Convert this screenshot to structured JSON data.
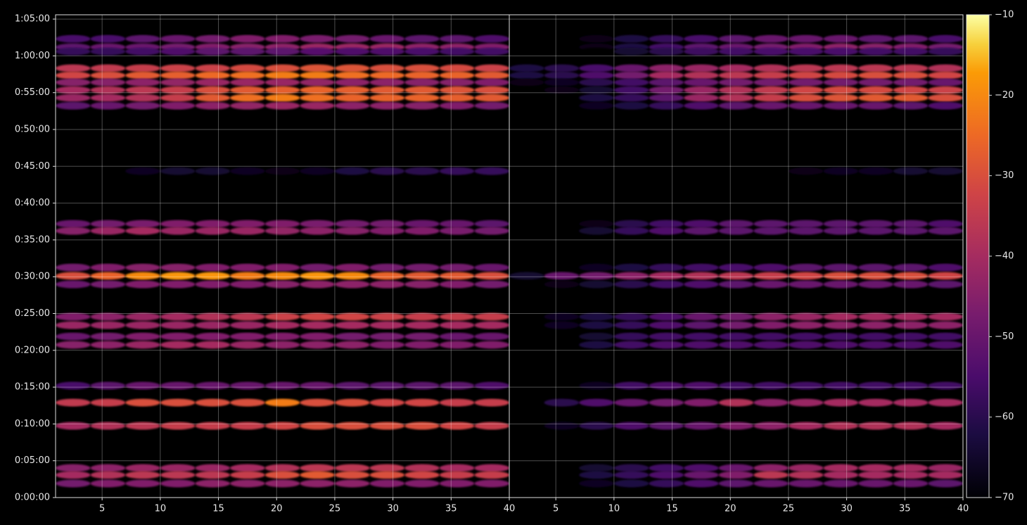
{
  "chart_data": {
    "type": "heatmap",
    "colormap": "inferno",
    "grid": true,
    "y": [
      3739,
      3671,
      3636,
      3499,
      3441,
      3384,
      3321,
      3258,
      3194,
      2661,
      2231,
      2174,
      1875,
      1807,
      1738,
      1474,
      1405,
      1313,
      1245,
      912,
      774,
      585,
      241,
      184,
      115
    ],
    "ylim": [
      0,
      3935
    ],
    "yticks": [
      {
        "value": 0,
        "label": "0:00:00"
      },
      {
        "value": 300,
        "label": "0:05:00"
      },
      {
        "value": 600,
        "label": "0:10:00"
      },
      {
        "value": 900,
        "label": "0:15:00"
      },
      {
        "value": 1200,
        "label": "0:20:00"
      },
      {
        "value": 1500,
        "label": "0:25:00"
      },
      {
        "value": 1800,
        "label": "0:30:00"
      },
      {
        "value": 2100,
        "label": "0:35:00"
      },
      {
        "value": 2400,
        "label": "0:40:00"
      },
      {
        "value": 2700,
        "label": "0:45:00"
      },
      {
        "value": 3000,
        "label": "0:50:00"
      },
      {
        "value": 3300,
        "label": "0:55:00"
      },
      {
        "value": 3600,
        "label": "1:00:00"
      },
      {
        "value": 3900,
        "label": "1:05:00"
      }
    ],
    "clim": [
      -70,
      -10
    ],
    "cticks": [
      {
        "value": -10,
        "label": "−10"
      },
      {
        "value": -20,
        "label": "−20"
      },
      {
        "value": -30,
        "label": "−30"
      },
      {
        "value": -40,
        "label": "−40"
      },
      {
        "value": -50,
        "label": "−50"
      },
      {
        "value": -60,
        "label": "−60"
      },
      {
        "value": -70,
        "label": "−70"
      }
    ],
    "panels": [
      {
        "x": [
          2.5,
          5.5,
          8.5,
          11.5,
          14.5,
          17.5,
          20.5,
          23.5,
          26.5,
          29.5,
          32.5,
          35.5,
          38.5
        ],
        "xlim": [
          1,
          40
        ],
        "xticks": [
          5,
          10,
          15,
          20,
          25,
          30,
          35,
          40
        ],
        "z": [
          [
            -55,
            -55,
            -52,
            -50,
            -48,
            -46,
            -46,
            -47,
            -48,
            -50,
            -52,
            -52,
            -54
          ],
          [
            -52,
            -50,
            -50,
            -48,
            -46,
            -45,
            -44,
            -42,
            -42,
            -42,
            -44,
            -44,
            -46
          ],
          [
            -58,
            -58,
            -56,
            -54,
            -52,
            -52,
            -52,
            -53,
            -54,
            -54,
            -55,
            -56,
            -56
          ],
          [
            -36,
            -35,
            -34,
            -33,
            -33,
            -31,
            -30,
            -29,
            -29,
            -30,
            -30,
            -31,
            -33
          ],
          [
            -32,
            -30,
            -28,
            -27,
            -25,
            -24,
            -22,
            -22,
            -24,
            -25,
            -26,
            -26,
            -28
          ],
          [
            -45,
            -45,
            -44,
            -43,
            -42,
            -42,
            -42,
            -43,
            -44,
            -44,
            -45,
            -45,
            -46
          ],
          [
            -40,
            -38,
            -36,
            -34,
            -30,
            -28,
            -27,
            -26,
            -27,
            -28,
            -28,
            -29,
            -30
          ],
          [
            -42,
            -40,
            -38,
            -34,
            -28,
            -24,
            -22,
            -24,
            -26,
            -26,
            -26,
            -27,
            -28
          ],
          [
            -52,
            -50,
            -48,
            -46,
            -44,
            -43,
            -42,
            -42,
            -44,
            -44,
            -45,
            -46,
            -48
          ],
          [
            -70,
            -70,
            -66,
            -64,
            -64,
            -66,
            -68,
            -66,
            -62,
            -60,
            -60,
            -58,
            -58
          ],
          [
            -50,
            -48,
            -47,
            -46,
            -46,
            -46,
            -46,
            -47,
            -48,
            -48,
            -50,
            -50,
            -52
          ],
          [
            -45,
            -42,
            -40,
            -42,
            -42,
            -42,
            -43,
            -44,
            -45,
            -46,
            -46,
            -47,
            -48
          ],
          [
            -48,
            -46,
            -45,
            -45,
            -46,
            -46,
            -46,
            -48,
            -46,
            -48,
            -48,
            -48,
            -50
          ],
          [
            -30,
            -26,
            -20,
            -18,
            -18,
            -22,
            -20,
            -18,
            -20,
            -26,
            -28,
            -28,
            -30
          ],
          [
            -50,
            -48,
            -46,
            -46,
            -46,
            -46,
            -45,
            -44,
            -44,
            -44,
            -45,
            -46,
            -48
          ],
          [
            -46,
            -44,
            -42,
            -40,
            -38,
            -36,
            -33,
            -32,
            -32,
            -33,
            -34,
            -34,
            -34
          ],
          [
            -42,
            -42,
            -42,
            -42,
            -42,
            -42,
            -40,
            -40,
            -40,
            -40,
            -40,
            -40,
            -40
          ],
          [
            -50,
            -48,
            -46,
            -46,
            -46,
            -46,
            -46,
            -46,
            -48,
            -48,
            -48,
            -50,
            -50
          ],
          [
            -45,
            -44,
            -42,
            -40,
            -40,
            -42,
            -44,
            -44,
            -44,
            -46,
            -46,
            -46,
            -46
          ],
          [
            -55,
            -52,
            -50,
            -50,
            -50,
            -50,
            -50,
            -50,
            -52,
            -52,
            -52,
            -52,
            -54
          ],
          [
            -35,
            -34,
            -30,
            -30,
            -30,
            -30,
            -22,
            -30,
            -30,
            -32,
            -32,
            -34,
            -34
          ],
          [
            -40,
            -38,
            -36,
            -34,
            -34,
            -34,
            -32,
            -30,
            -30,
            -30,
            -30,
            -32,
            -34
          ],
          [
            -45,
            -44,
            -42,
            -42,
            -42,
            -40,
            -38,
            -36,
            -36,
            -36,
            -38,
            -40,
            -40
          ],
          [
            -40,
            -38,
            -36,
            -36,
            -36,
            -34,
            -30,
            -28,
            -30,
            -30,
            -32,
            -34,
            -34
          ],
          [
            -48,
            -46,
            -46,
            -46,
            -44,
            -44,
            -44,
            -44,
            -44,
            -46,
            -46,
            -46,
            -46
          ]
        ]
      },
      {
        "x": [
          2.5,
          5.5,
          8.5,
          11.5,
          14.5,
          17.5,
          20.5,
          23.5,
          26.5,
          29.5,
          32.5,
          35.5,
          38.5
        ],
        "xlim": [
          1,
          40
        ],
        "xticks": [
          5,
          10,
          15,
          20,
          25,
          30,
          35,
          40
        ],
        "z": [
          [
            -70,
            -70,
            -68,
            -62,
            -58,
            -55,
            -52,
            -50,
            -50,
            -50,
            -52,
            -52,
            -55
          ],
          [
            -70,
            -70,
            -68,
            -62,
            -56,
            -52,
            -50,
            -48,
            -46,
            -44,
            -45,
            -46,
            -48
          ],
          [
            -70,
            -70,
            -70,
            -64,
            -60,
            -57,
            -56,
            -55,
            -55,
            -55,
            -56,
            -56,
            -58
          ],
          [
            -62,
            -60,
            -55,
            -50,
            -44,
            -42,
            -40,
            -38,
            -36,
            -36,
            -36,
            -36,
            -38
          ],
          [
            -62,
            -60,
            -54,
            -48,
            -40,
            -38,
            -36,
            -34,
            -32,
            -31,
            -30,
            -30,
            -32
          ],
          [
            -68,
            -66,
            -60,
            -56,
            -52,
            -50,
            -48,
            -48,
            -48,
            -48,
            -48,
            -48,
            -50
          ],
          [
            -70,
            -68,
            -64,
            -56,
            -48,
            -42,
            -38,
            -35,
            -32,
            -31,
            -31,
            -32,
            -33
          ],
          [
            -70,
            -70,
            -62,
            -58,
            -52,
            -42,
            -38,
            -34,
            -30,
            -29,
            -28,
            -28,
            -30
          ],
          [
            -70,
            -70,
            -66,
            -62,
            -58,
            -54,
            -52,
            -50,
            -50,
            -50,
            -50,
            -52,
            -54
          ],
          [
            -70,
            -70,
            -70,
            -70,
            -70,
            -70,
            -70,
            -70,
            -68,
            -66,
            -66,
            -64,
            -64
          ],
          [
            -70,
            -70,
            -68,
            -60,
            -56,
            -54,
            -52,
            -52,
            -52,
            -52,
            -52,
            -52,
            -54
          ],
          [
            -70,
            -70,
            -64,
            -58,
            -54,
            -52,
            -52,
            -52,
            -52,
            -52,
            -52,
            -52,
            -52
          ],
          [
            -70,
            -70,
            -66,
            -62,
            -58,
            -56,
            -55,
            -54,
            -52,
            -52,
            -52,
            -52,
            -54
          ],
          [
            -64,
            -50,
            -48,
            -44,
            -40,
            -38,
            -36,
            -34,
            -32,
            -30,
            -30,
            -30,
            -32
          ],
          [
            -70,
            -68,
            -64,
            -60,
            -56,
            -54,
            -52,
            -50,
            -50,
            -50,
            -50,
            -50,
            -52
          ],
          [
            -70,
            -66,
            -62,
            -58,
            -54,
            -50,
            -48,
            -44,
            -42,
            -40,
            -40,
            -40,
            -40
          ],
          [
            -70,
            -66,
            -62,
            -58,
            -54,
            -52,
            -48,
            -46,
            -44,
            -44,
            -44,
            -44,
            -44
          ],
          [
            -70,
            -70,
            -64,
            -58,
            -56,
            -56,
            -56,
            -56,
            -56,
            -56,
            -56,
            -56,
            -56
          ],
          [
            -70,
            -70,
            -62,
            -56,
            -54,
            -54,
            -54,
            -54,
            -54,
            -54,
            -54,
            -54,
            -54
          ],
          [
            -70,
            -70,
            -66,
            -56,
            -54,
            -54,
            -56,
            -56,
            -56,
            -56,
            -56,
            -56,
            -56
          ],
          [
            -70,
            -60,
            -54,
            -50,
            -48,
            -46,
            -38,
            -44,
            -42,
            -40,
            -40,
            -40,
            -40
          ],
          [
            -70,
            -66,
            -60,
            -54,
            -52,
            -50,
            -46,
            -44,
            -40,
            -38,
            -38,
            -38,
            -40
          ],
          [
            -70,
            -70,
            -64,
            -60,
            -56,
            -54,
            -50,
            -44,
            -42,
            -40,
            -40,
            -40,
            -42
          ],
          [
            -70,
            -70,
            -62,
            -58,
            -54,
            -50,
            -46,
            -36,
            -38,
            -40,
            -40,
            -40,
            -40
          ],
          [
            -70,
            -70,
            -66,
            -62,
            -58,
            -54,
            -52,
            -50,
            -50,
            -50,
            -50,
            -50,
            -52
          ]
        ]
      }
    ]
  }
}
